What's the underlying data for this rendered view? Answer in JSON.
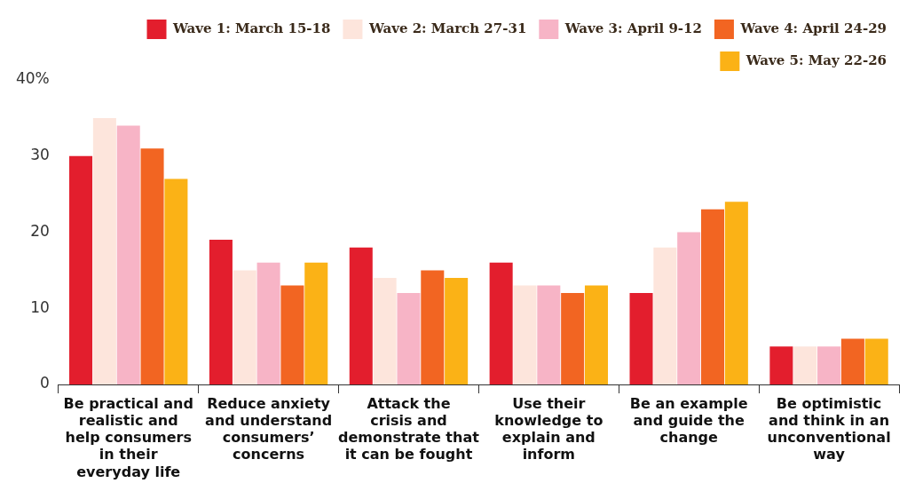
{
  "chart_data": {
    "type": "bar",
    "categories": [
      "Be practical and realistic and help consumers in their everyday life",
      "Reduce anxiety and understand consumers’ concerns",
      "Attack the crisis and demonstrate that it can be fought",
      "Use their knowledge to explain and inform",
      "Be an example and guide the change",
      "Be optimistic and think in an unconventional way"
    ],
    "series": [
      {
        "name": "Wave 1: March 15-18",
        "color": "#e31e2d",
        "values": [
          30,
          19,
          18,
          16,
          12,
          5
        ]
      },
      {
        "name": "Wave 2: March 27-31",
        "color": "#fde5dc",
        "values": [
          35,
          15,
          14,
          13,
          18,
          5
        ]
      },
      {
        "name": "Wave 3: April 9-12",
        "color": "#f7b4c6",
        "values": [
          34,
          16,
          12,
          13,
          20,
          5
        ]
      },
      {
        "name": "Wave 4: April 24-29",
        "color": "#f26522",
        "values": [
          31,
          13,
          15,
          12,
          23,
          6
        ]
      },
      {
        "name": "Wave 5: May 22-26",
        "color": "#fbb216",
        "values": [
          27,
          16,
          14,
          13,
          24,
          6
        ]
      }
    ],
    "ylim": [
      0,
      40
    ],
    "yticks": [
      0,
      10,
      20,
      30,
      {
        "value": 40,
        "label": "40%"
      }
    ],
    "grid": false,
    "legend": "top right"
  }
}
